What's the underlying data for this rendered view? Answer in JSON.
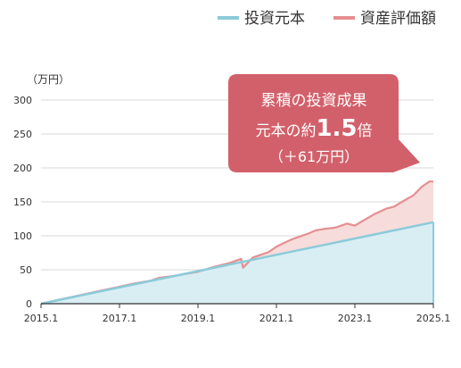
{
  "chart_data": {
    "type": "area",
    "ylabel": "（万円）",
    "xlim": [
      "2015.1",
      "2025.1"
    ],
    "ylim": [
      0,
      300
    ],
    "yticks": [
      0,
      50,
      100,
      150,
      200,
      250,
      300
    ],
    "xtick_labels": [
      "2015.1",
      "2017.1",
      "2019.1",
      "2021.1",
      "2023.1",
      "2025.1"
    ],
    "grid": "horizontal",
    "legend_position": "top-right",
    "series": [
      {
        "name": "投資元本",
        "color": "#8bcbd9",
        "fill": "#d9eef3",
        "x": [
          "2015.1",
          "2025.1"
        ],
        "values": [
          0,
          120
        ]
      },
      {
        "name": "資産評価額",
        "color": "#e48f92",
        "fill": "#f6dcdb",
        "x": [
          "2015.1",
          "2016.1",
          "2017.1",
          "2017.5",
          "2017.9",
          "2018.1",
          "2018.5",
          "2018.9",
          "2019.1",
          "2019.5",
          "2019.9",
          "2020.1",
          "2020.2",
          "2020.25",
          "2020.5",
          "2020.9",
          "2021.1",
          "2021.5",
          "2021.9",
          "2022.1",
          "2022.3",
          "2022.6",
          "2022.9",
          "2023.1",
          "2023.3",
          "2023.6",
          "2023.9",
          "2024.1",
          "2024.3",
          "2024.6",
          "2024.8",
          "2025.0",
          "2025.1"
        ],
        "values": [
          0,
          12.5,
          25,
          30,
          34,
          38,
          41,
          45,
          47,
          54,
          60,
          64,
          66,
          53,
          68,
          76,
          84,
          95,
          103,
          108,
          110,
          112,
          118,
          115,
          122,
          132,
          140,
          143,
          150,
          160,
          172,
          180,
          180
        ]
      }
    ],
    "annotation": {
      "line1": "累積の投資成果",
      "line2_prefix": "元本の約",
      "line2_value": "1.5",
      "line2_suffix": "倍",
      "line3": "（＋61万円）",
      "color": "#d2606a"
    }
  }
}
